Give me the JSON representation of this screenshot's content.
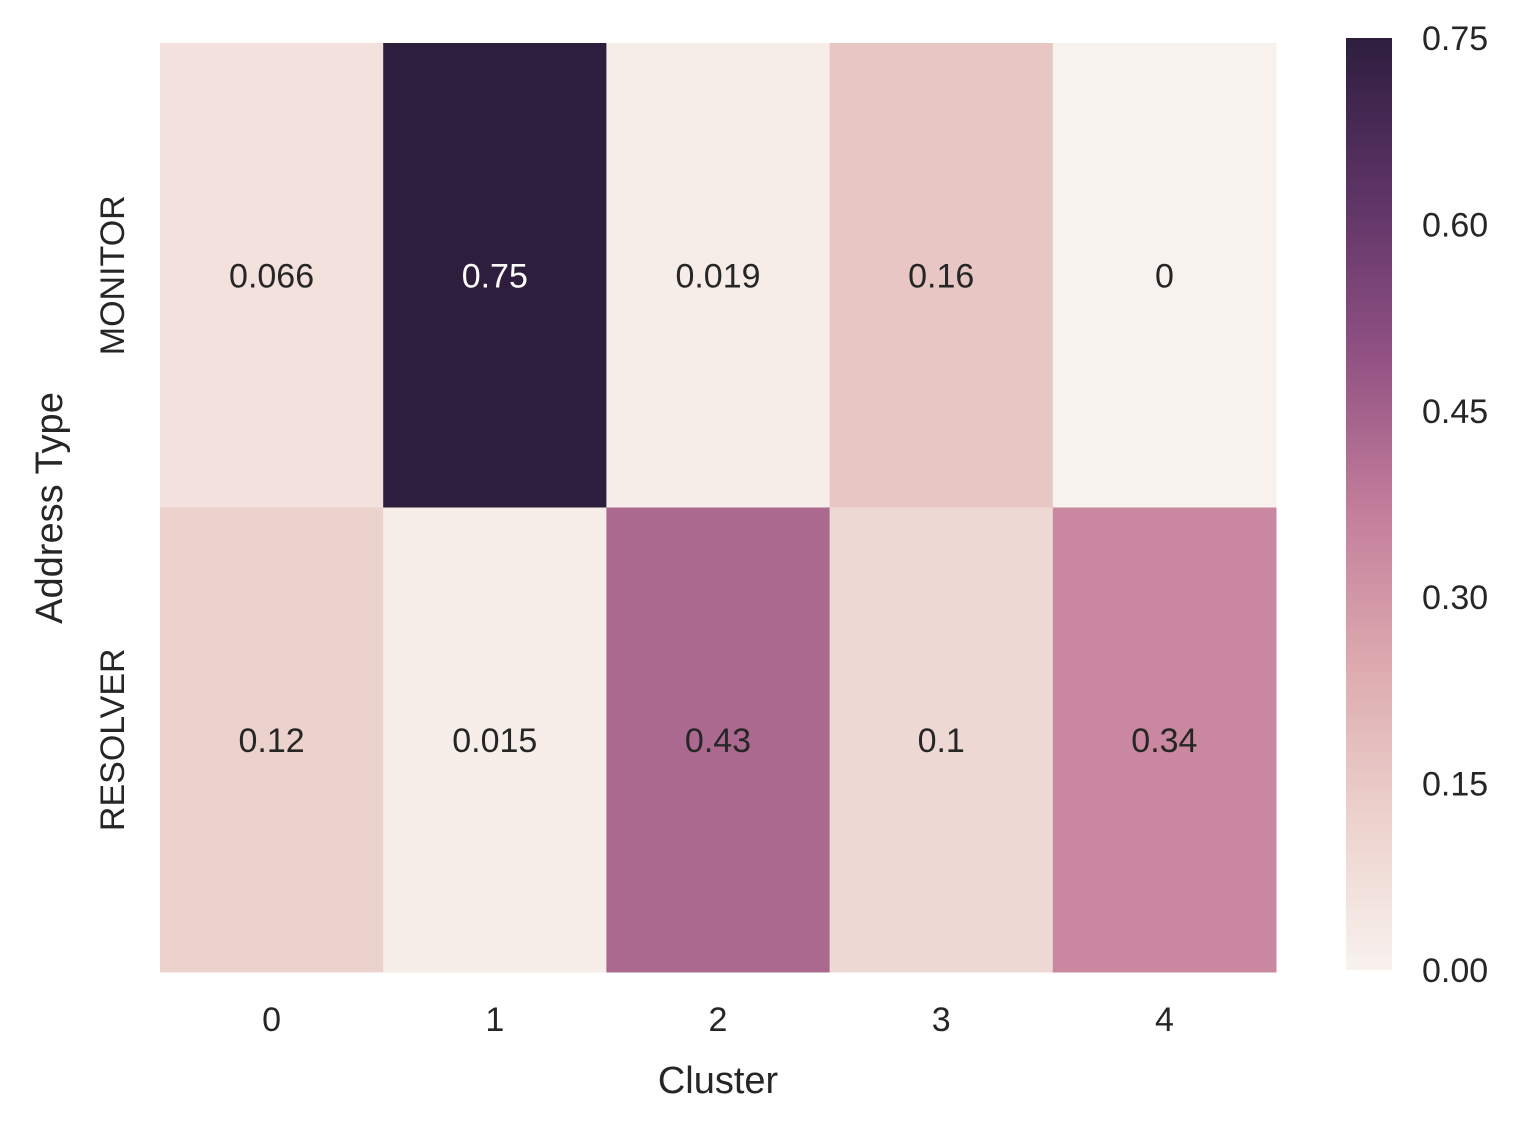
{
  "chart_data": {
    "type": "heatmap",
    "title": "",
    "xlabel": "Cluster",
    "ylabel": "Address Type",
    "x_categories": [
      "0",
      "1",
      "2",
      "3",
      "4"
    ],
    "y_categories": [
      "MONITOR",
      "RESOLVER"
    ],
    "values": [
      [
        0.066,
        0.75,
        0.019,
        0.16,
        0
      ],
      [
        0.12,
        0.015,
        0.43,
        0.1,
        0.34
      ]
    ],
    "annotations": [
      [
        "0.066",
        "0.75",
        "0.019",
        "0.16",
        "0"
      ],
      [
        "0.12",
        "0.015",
        "0.43",
        "0.1",
        "0.34"
      ]
    ],
    "colorbar": {
      "range": [
        0,
        0.75
      ],
      "ticks": [
        "0.00",
        "0.15",
        "0.30",
        "0.45",
        "0.60",
        "0.75"
      ],
      "colors": [
        "#f8f2ee",
        "#ecd1cc",
        "#dca8ae",
        "#c17c9a",
        "#8f5082",
        "#5d3366",
        "#2d1e3e"
      ]
    },
    "grid": false
  }
}
